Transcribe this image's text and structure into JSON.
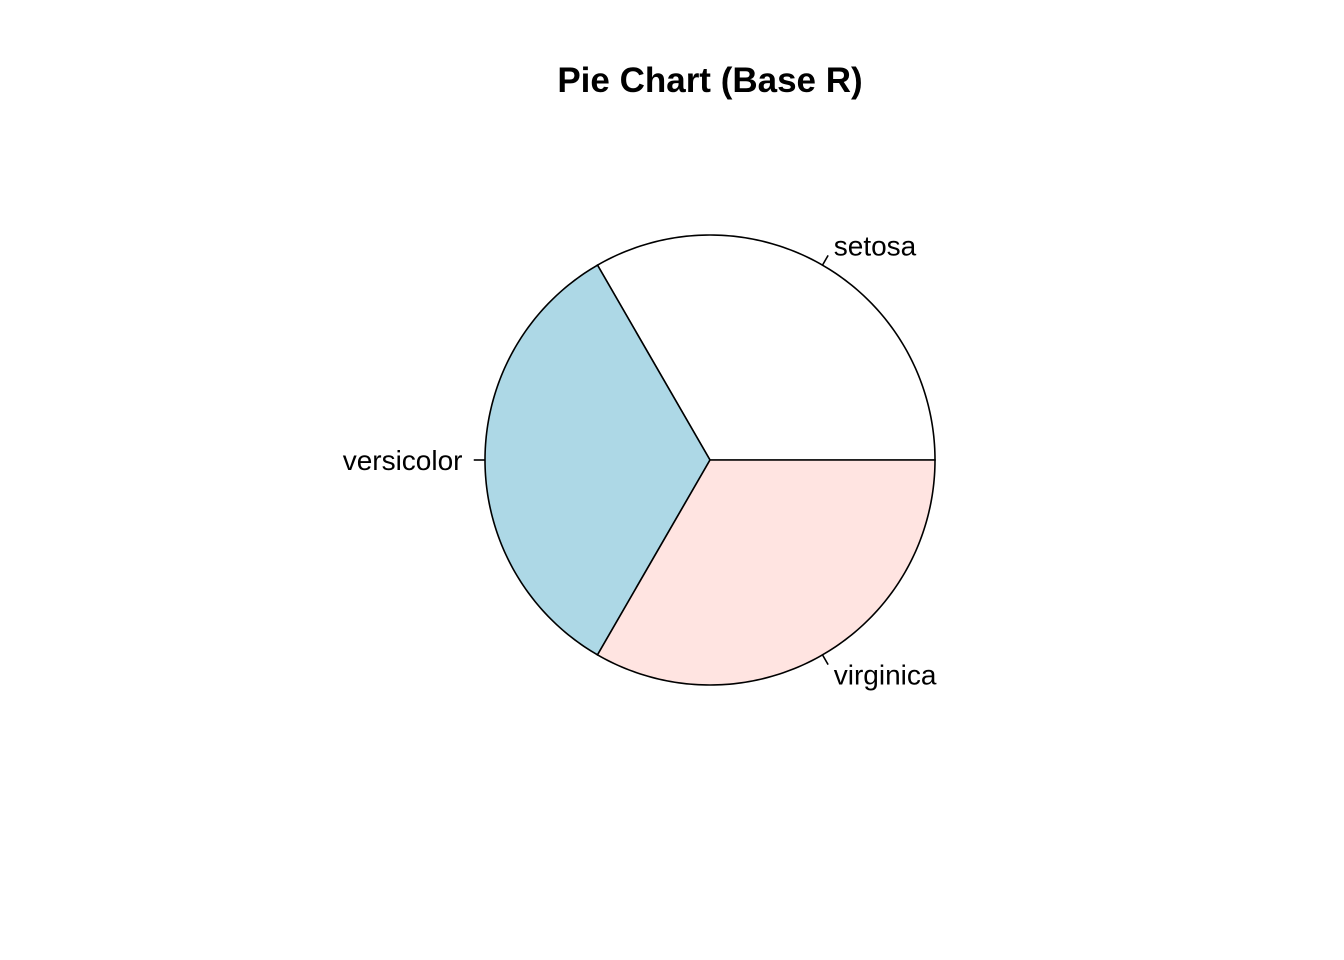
{
  "chart_data": {
    "type": "pie",
    "title": "Pie Chart (Base R)",
    "slices": [
      {
        "label": "setosa",
        "value": 50,
        "color": "#FFFFFF"
      },
      {
        "label": "versicolor",
        "value": 50,
        "color": "#ADD8E6"
      },
      {
        "label": "virginica",
        "value": 50,
        "color": "#FFE4E1"
      }
    ],
    "start_angle_deg": 0,
    "direction": "counterclockwise",
    "border_color": "#000000"
  }
}
